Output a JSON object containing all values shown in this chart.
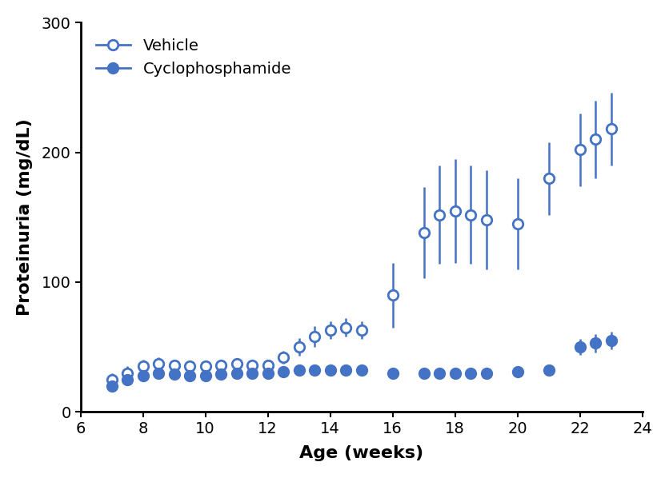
{
  "xlabel": "Age (weeks)",
  "ylabel": "Proteinuria (mg/dL)",
  "xlim": [
    6,
    24
  ],
  "ylim": [
    0,
    300
  ],
  "xticks": [
    6,
    8,
    10,
    12,
    14,
    16,
    18,
    20,
    22,
    24
  ],
  "yticks": [
    0,
    100,
    200,
    300
  ],
  "line_color": "#4472C4",
  "background_color": "#ffffff",
  "vehicle_x": [
    7,
    7.5,
    8,
    8.5,
    9,
    9.5,
    10,
    10.5,
    11,
    11.5,
    12,
    12.5,
    13,
    13.5,
    14,
    14.5,
    15,
    16,
    17,
    17.5,
    18,
    18.5,
    19,
    20,
    21,
    22,
    22.5,
    23
  ],
  "vehicle_y": [
    25,
    30,
    35,
    37,
    36,
    35,
    35,
    36,
    37,
    36,
    36,
    42,
    50,
    58,
    63,
    65,
    63,
    90,
    138,
    152,
    155,
    152,
    148,
    145,
    180,
    202,
    210,
    218
  ],
  "vehicle_err": [
    5,
    5,
    5,
    5,
    4,
    4,
    4,
    4,
    4,
    4,
    4,
    5,
    7,
    8,
    7,
    7,
    7,
    25,
    35,
    38,
    40,
    38,
    38,
    35,
    28,
    28,
    30,
    28
  ],
  "cyclo_x": [
    7,
    7.5,
    8,
    8.5,
    9,
    9.5,
    10,
    10.5,
    11,
    11.5,
    12,
    12.5,
    13,
    13.5,
    14,
    14.5,
    15,
    16,
    17,
    17.5,
    18,
    18.5,
    19,
    20,
    21,
    22,
    22.5,
    23
  ],
  "cyclo_y": [
    20,
    25,
    28,
    30,
    29,
    28,
    28,
    29,
    30,
    30,
    30,
    31,
    32,
    32,
    32,
    32,
    32,
    30,
    30,
    30,
    30,
    30,
    30,
    31,
    32,
    50,
    53,
    55
  ],
  "cyclo_err": [
    4,
    3,
    3,
    3,
    3,
    3,
    3,
    3,
    3,
    3,
    3,
    3,
    3,
    3,
    3,
    3,
    3,
    3,
    3,
    3,
    3,
    3,
    3,
    3,
    3,
    6,
    7,
    7
  ]
}
